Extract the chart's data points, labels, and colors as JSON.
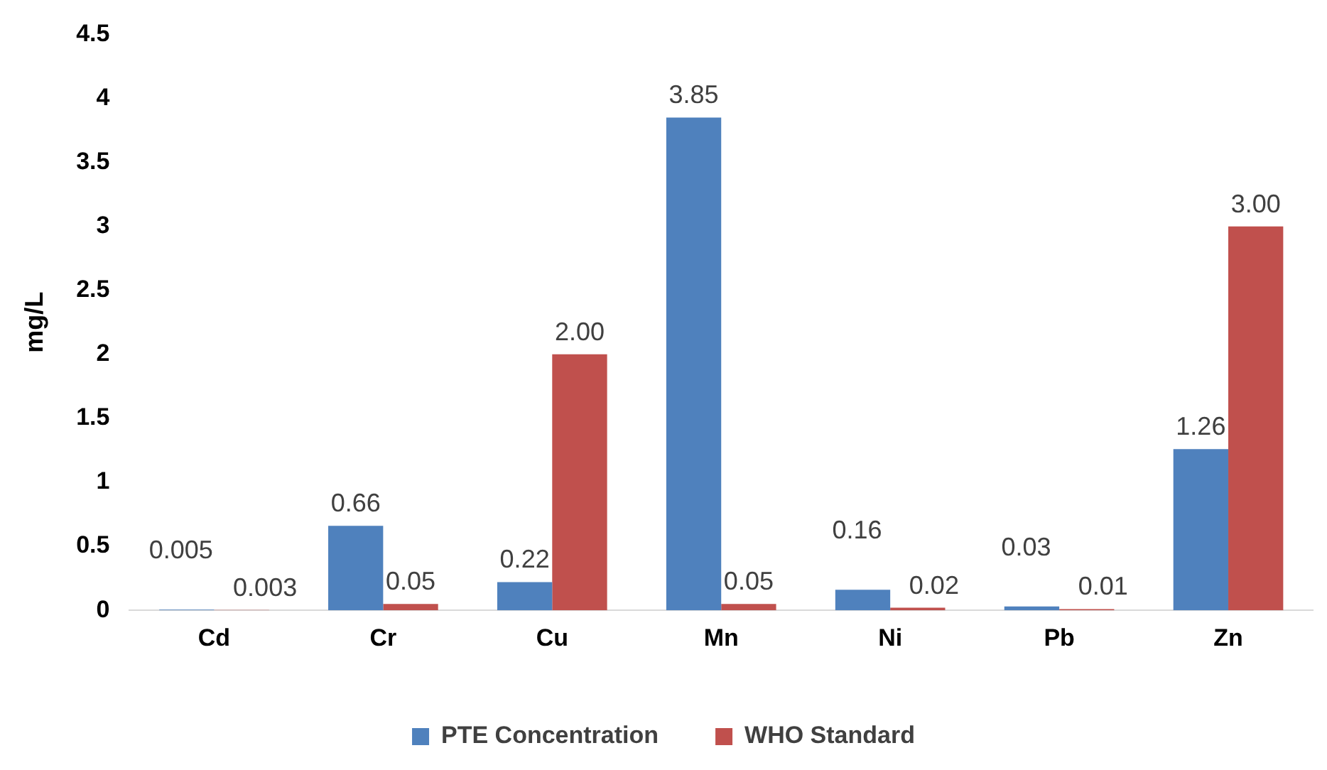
{
  "chart_data": {
    "type": "bar",
    "ylabel": "mg/L",
    "categories": [
      "Cd",
      "Cr",
      "Cu",
      "Mn",
      "Ni",
      "Pb",
      "Zn"
    ],
    "series": [
      {
        "name": "PTE Concentration",
        "color": "#4f81bd",
        "values": [
          0.005,
          0.66,
          0.22,
          3.85,
          0.16,
          0.03,
          1.26
        ],
        "value_labels": [
          "0.005",
          "0.66",
          "0.22",
          "3.85",
          "0.16",
          "0.03",
          "1.26"
        ]
      },
      {
        "name": "WHO Standard",
        "color": "#c0504d",
        "values": [
          0.003,
          0.05,
          2.0,
          0.05,
          0.02,
          0.01,
          3.0
        ],
        "value_labels": [
          "0.003",
          "0.05",
          "2.00",
          "0.05",
          "0.02",
          "0.01",
          "3.00"
        ]
      }
    ],
    "ylim": [
      0,
      4.5
    ],
    "yticks": [
      0,
      0.5,
      1,
      1.5,
      2,
      2.5,
      3,
      3.5,
      4,
      4.5
    ],
    "grid": false,
    "legend": "bottom"
  }
}
